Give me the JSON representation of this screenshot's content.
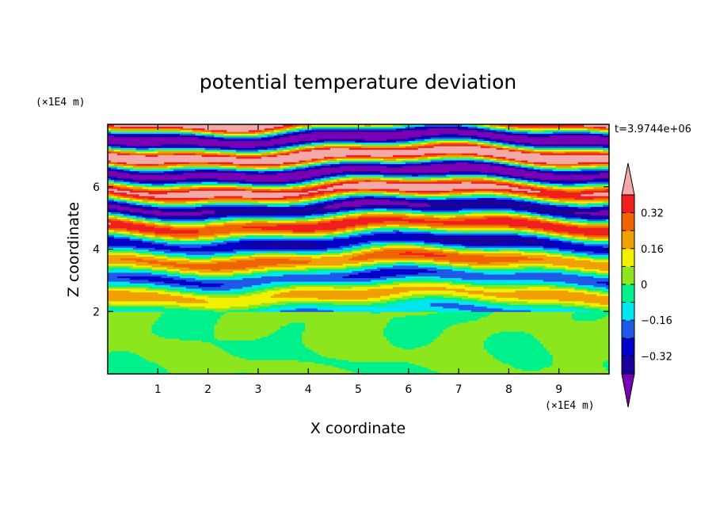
{
  "chart_data": {
    "type": "heatmap",
    "title": "potential temperature deviation",
    "xlabel": "X coordinate",
    "ylabel": "Z coordinate",
    "x_unit": "(×1E4 m)",
    "y_unit": "(×1E4 m)",
    "time_label": "t=3.9744e+06",
    "xlim": [
      0,
      10
    ],
    "ylim": [
      0,
      8
    ],
    "x_ticks": [
      1,
      2,
      3,
      4,
      5,
      6,
      7,
      8,
      9
    ],
    "y_ticks": [
      2,
      4,
      6
    ],
    "colorbar": {
      "levels": [
        -0.4,
        -0.32,
        -0.24,
        -0.16,
        -0.08,
        0,
        0.08,
        0.16,
        0.24,
        0.32,
        0.4
      ],
      "labeled_ticks": [
        "0.32",
        "0.16",
        "0",
        "−0.16",
        "−0.32"
      ],
      "labeled_values": [
        0.32,
        0.16,
        0,
        -0.16,
        -0.32
      ],
      "bin_colors": [
        "#1a0099",
        "#0000c8",
        "#1e5ae6",
        "#00e6f0",
        "#00f08c",
        "#8ce61e",
        "#f0f000",
        "#f0a000",
        "#f06400",
        "#f01e1e"
      ],
      "under_color": "#7a00b4",
      "over_color": "#f5a8a8"
    },
    "regions": [
      {
        "z_range": [
          0,
          2
        ],
        "description_values": [
          -0.08,
          0.08
        ]
      },
      {
        "z_range": [
          2,
          8
        ],
        "description_values": [
          -0.4,
          0.4
        ]
      }
    ]
  }
}
